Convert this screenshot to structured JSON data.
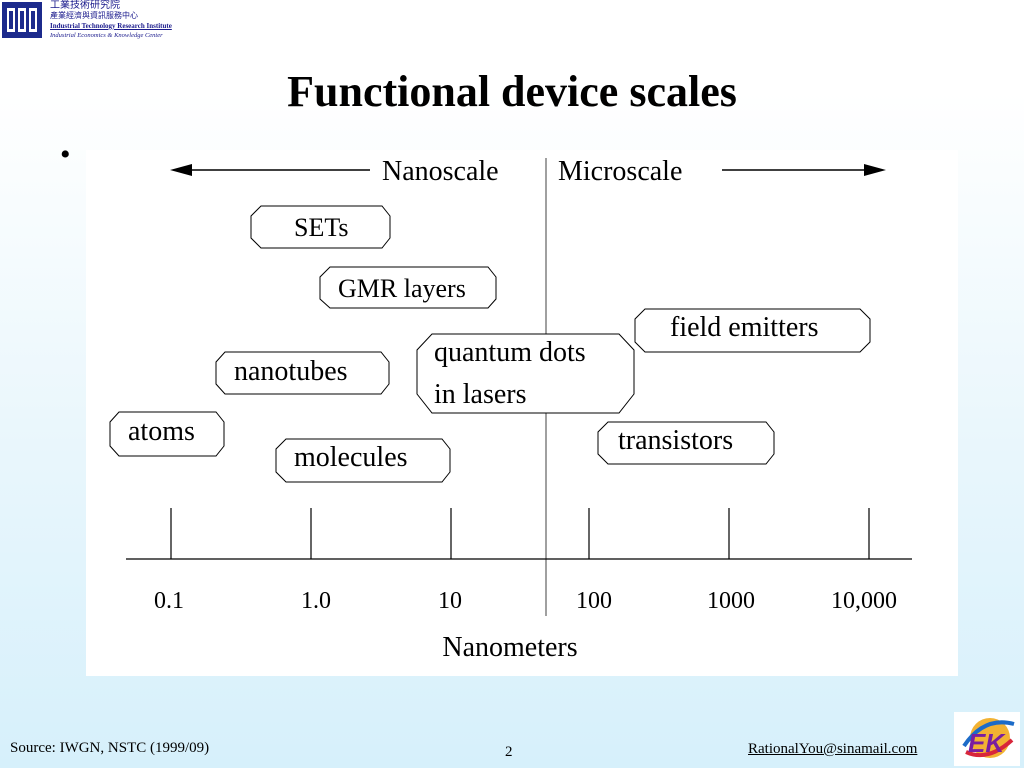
{
  "header": {
    "org_line1": "工業技術研究院",
    "org_line2": "產業經濟與資訊服務中心",
    "org_line3": "Industrial Technology Research Institute",
    "org_line4": "Industrial Economics & Knowledge Center"
  },
  "slide": {
    "title": "Functional device scales",
    "bullet": "•"
  },
  "diagram": {
    "left_label": "Nanoscale",
    "right_label": "Microscale",
    "boxes": [
      {
        "id": "sets",
        "lines": [
          "SETs"
        ]
      },
      {
        "id": "gmr",
        "lines": [
          "GMR layers"
        ]
      },
      {
        "id": "field-emitters",
        "lines": [
          "field emitters"
        ]
      },
      {
        "id": "nanotubes",
        "lines": [
          "nanotubes"
        ]
      },
      {
        "id": "quantum-dots",
        "lines": [
          "quantum dots",
          "in lasers"
        ]
      },
      {
        "id": "atoms",
        "lines": [
          "atoms"
        ]
      },
      {
        "id": "molecules",
        "lines": [
          "molecules"
        ]
      },
      {
        "id": "transistors",
        "lines": [
          "transistors"
        ]
      }
    ],
    "ticks": [
      "0.1",
      "1.0",
      "10",
      "100",
      "1000",
      "10,000"
    ],
    "axis_label": "Nanometers"
  },
  "footer": {
    "source": "Source: IWGN, NSTC  (1999/09)",
    "page": "2",
    "email": "RationalYou@sinamail.com"
  },
  "colors": {
    "org_blue": "#1a1a8c",
    "logo_blue": "#1c2a8c"
  }
}
